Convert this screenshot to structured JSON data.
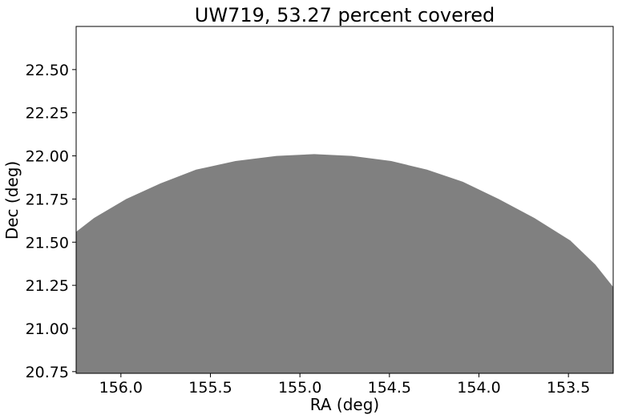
{
  "chart_data": {
    "type": "area",
    "title": "UW719, 53.27 percent covered",
    "xlabel": "RA (deg)",
    "ylabel": "Dec (deg)",
    "xlim": [
      156.25,
      153.25
    ],
    "ylim": [
      20.74,
      22.75
    ],
    "x_inverted": true,
    "xticks": [
      156.0,
      155.5,
      155.0,
      154.5,
      154.0,
      153.5
    ],
    "xtick_labels": [
      "156.0",
      "155.5",
      "155.0",
      "154.5",
      "154.0",
      "153.5"
    ],
    "yticks": [
      20.75,
      21.0,
      21.25,
      21.5,
      21.75,
      22.0,
      22.25,
      22.5
    ],
    "ytick_labels": [
      "20.75",
      "21.00",
      "21.25",
      "21.50",
      "21.75",
      "22.00",
      "22.25",
      "22.50"
    ],
    "grid": false,
    "series": [
      {
        "fill_color": "#808080",
        "x": [
          156.25,
          156.15,
          155.97,
          155.78,
          155.58,
          155.36,
          155.13,
          154.92,
          154.71,
          154.49,
          154.29,
          154.09,
          153.89,
          153.69,
          153.49,
          153.35,
          153.25
        ],
        "y": [
          21.56,
          21.64,
          21.75,
          21.84,
          21.92,
          21.97,
          22.0,
          22.01,
          22.0,
          21.97,
          21.92,
          21.85,
          21.75,
          21.64,
          21.51,
          21.37,
          21.24
        ]
      }
    ]
  }
}
